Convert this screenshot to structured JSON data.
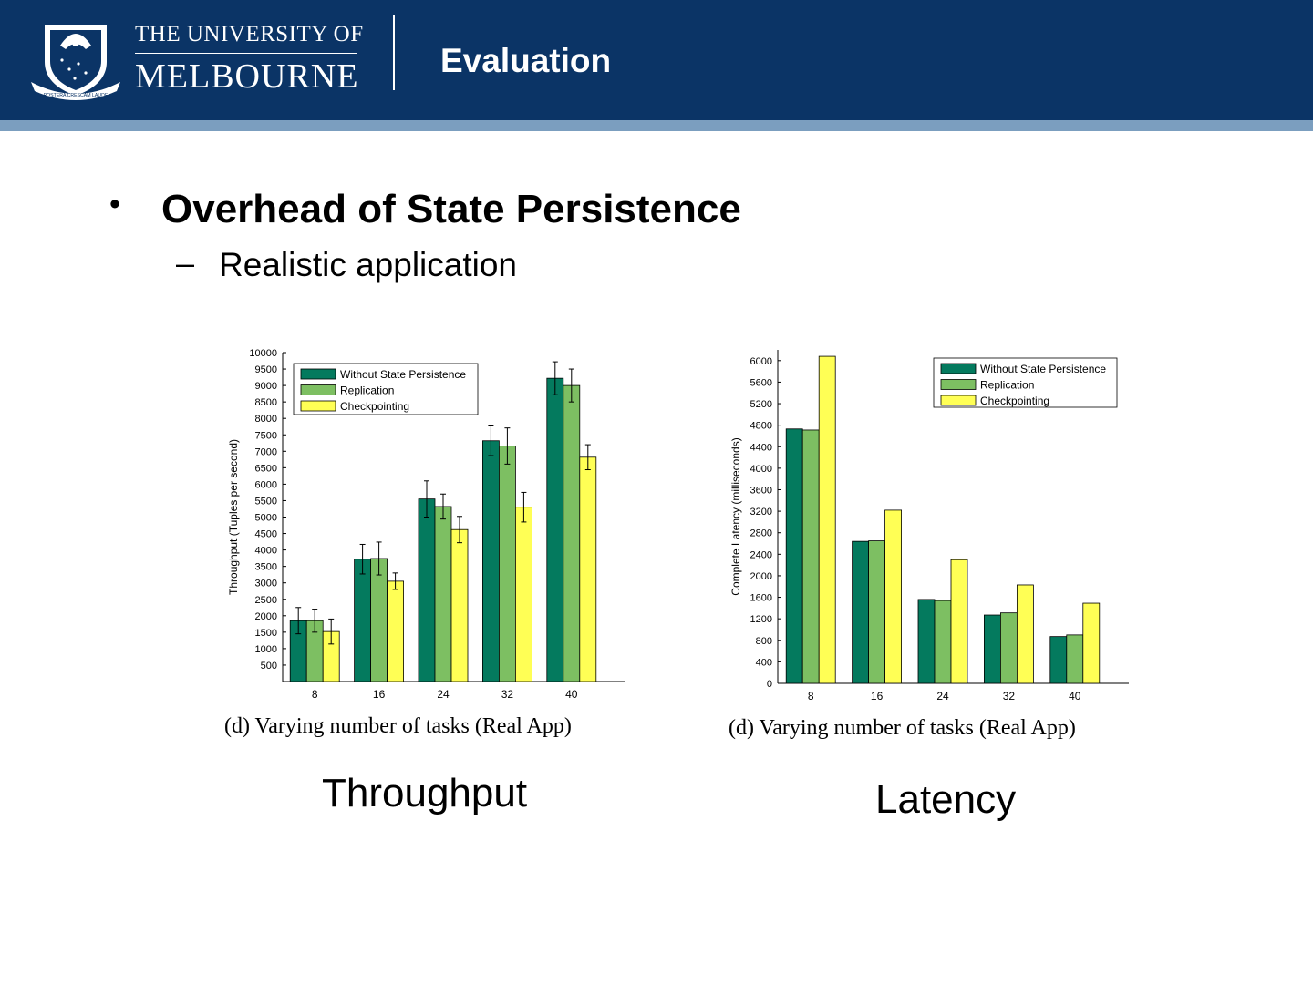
{
  "header": {
    "university_line1": "THE UNIVERSITY OF",
    "university_line2": "MELBOURNE",
    "crest_motto": "POSTERA CRESCAM LAUDE",
    "title": "Evaluation",
    "colors": {
      "header_bg": "#0b3466",
      "stripe": "#7b9ebf"
    }
  },
  "content": {
    "bullet1": "Overhead of State Persistence",
    "bullet1_sub": "Realistic application"
  },
  "labels": {
    "throughput": "Throughput",
    "latency": "Latency"
  },
  "chart_data": [
    {
      "type": "bar",
      "caption": "(d) Varying number of tasks (Real App)",
      "ylabel": "Throughput (Tuples per second)",
      "xlabel": "",
      "categories": [
        "8",
        "16",
        "24",
        "32",
        "40"
      ],
      "ylim": [
        0,
        10000
      ],
      "yticks": [
        500,
        1000,
        1500,
        2000,
        2500,
        3000,
        3500,
        4000,
        4500,
        5000,
        5500,
        6000,
        6500,
        7000,
        7500,
        8000,
        8500,
        9000,
        9500,
        10000
      ],
      "legend_position": "top-left",
      "colors": [
        "#047a5e",
        "#7dbf62",
        "#ffff55"
      ],
      "series": [
        {
          "name": "Without State Persistence",
          "values": [
            1850,
            3720,
            5550,
            7320,
            9220
          ],
          "errors": [
            400,
            450,
            550,
            450,
            500
          ]
        },
        {
          "name": "Replication",
          "values": [
            1850,
            3740,
            5320,
            7160,
            9000
          ],
          "errors": [
            350,
            500,
            380,
            550,
            500
          ]
        },
        {
          "name": "Checkpointing",
          "values": [
            1520,
            3050,
            4620,
            5300,
            6820
          ],
          "errors": [
            380,
            250,
            400,
            450,
            380
          ]
        }
      ]
    },
    {
      "type": "bar",
      "caption": "(d) Varying number of tasks (Real App)",
      "ylabel": "Complete Latency (milliseconds)",
      "xlabel": "",
      "categories": [
        "8",
        "16",
        "24",
        "32",
        "40"
      ],
      "ylim": [
        0,
        6200
      ],
      "yticks": [
        0,
        400,
        800,
        1200,
        1600,
        2000,
        2400,
        2800,
        3200,
        3600,
        4000,
        4400,
        4800,
        5200,
        5600,
        6000
      ],
      "legend_position": "top-right",
      "colors": [
        "#047a5e",
        "#7dbf62",
        "#ffff55"
      ],
      "series": [
        {
          "name": "Without State Persistence",
          "values": [
            4730,
            2640,
            1560,
            1270,
            870
          ]
        },
        {
          "name": "Replication",
          "values": [
            4710,
            2650,
            1540,
            1310,
            900
          ]
        },
        {
          "name": "Checkpointing",
          "values": [
            6080,
            3220,
            2300,
            1830,
            1490
          ]
        }
      ]
    }
  ]
}
